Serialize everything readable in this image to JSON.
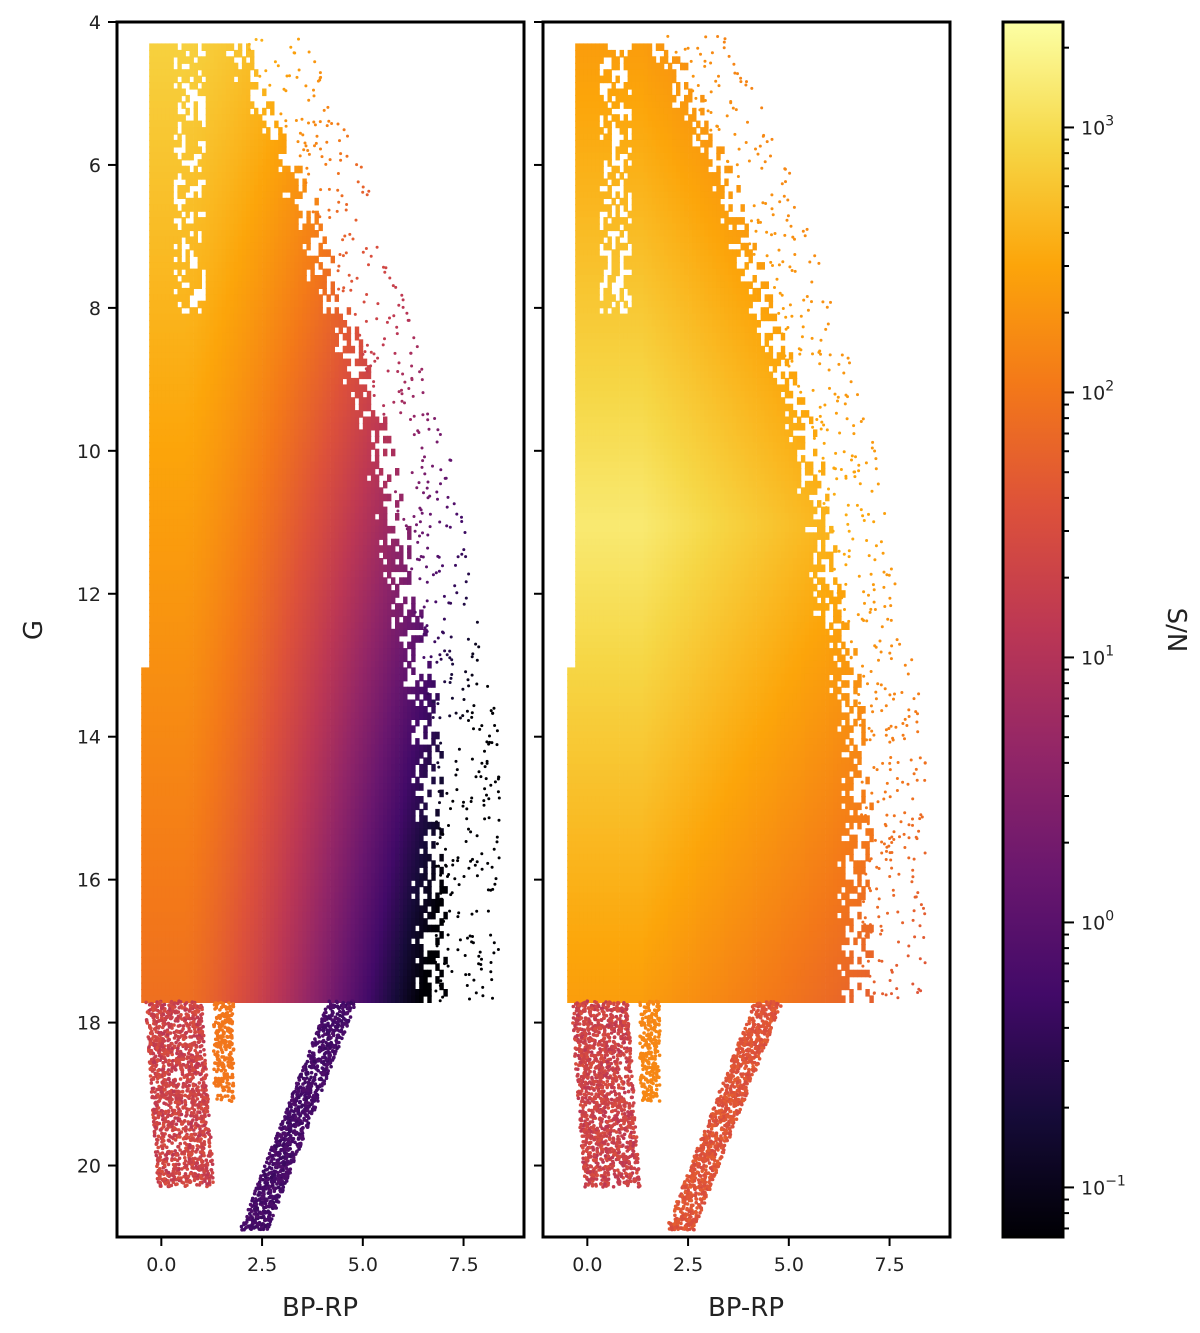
{
  "chart_data": [
    {
      "type": "scatter",
      "panel": "left",
      "xlabel": "BP-RP",
      "ylabel": "G",
      "xlim": [
        -1.1,
        9.0
      ],
      "ylim": [
        21.0,
        4.0
      ],
      "y_inverted": true,
      "xticks": [
        "0.0",
        "2.5",
        "5.0",
        "7.5"
      ],
      "xtick_values": [
        0.0,
        2.5,
        5.0,
        7.5
      ],
      "yticks": [
        "4",
        "6",
        "8",
        "10",
        "12",
        "14",
        "16",
        "18",
        "20"
      ],
      "ytick_values": [
        4,
        6,
        8,
        10,
        12,
        14,
        16,
        18,
        20
      ],
      "grid": false,
      "color_by": "S/N",
      "description_regions": {
        "main_sequence": {
          "x_range": [
            -0.5,
            6.3
          ],
          "g_range": [
            4.3,
            17.7
          ],
          "sn_bright_blue": 800,
          "sn_faint_red": 0.6
        },
        "white_dwarf_branch": {
          "x_range": [
            -0.4,
            1.2
          ],
          "g_range": [
            17.7,
            20.3
          ],
          "sn": 20
        },
        "red_tail": {
          "x_range": [
            2.2,
            4.7
          ],
          "g_range": [
            17.7,
            20.9
          ],
          "sn": 0.6
        }
      }
    },
    {
      "type": "scatter",
      "panel": "right",
      "xlabel": "BP-RP",
      "ylabel": "",
      "xlim": [
        -1.1,
        9.0
      ],
      "ylim": [
        21.0,
        4.0
      ],
      "y_inverted": true,
      "xticks": [
        "0.0",
        "2.5",
        "5.0",
        "7.5"
      ],
      "xtick_values": [
        0.0,
        2.5,
        5.0,
        7.5
      ],
      "grid": false,
      "color_by": "S/N",
      "description_regions": {
        "main_sequence": {
          "x_range": [
            -0.5,
            6.3
          ],
          "g_range": [
            4.3,
            17.7
          ],
          "sn_peak": 1500,
          "sn_faint_red": 60
        },
        "white_dwarf_branch": {
          "x_range": [
            -0.4,
            1.2
          ],
          "g_range": [
            17.7,
            20.3
          ],
          "sn": 20
        },
        "red_tail": {
          "x_range": [
            2.2,
            4.7
          ],
          "g_range": [
            17.7,
            20.9
          ],
          "sn": 40
        }
      }
    }
  ],
  "colorbar": {
    "label": "S/N",
    "scale": "log",
    "colormap": "inferno",
    "range": [
      0.065,
      2500
    ],
    "ticks": [
      {
        "value": 0.1,
        "base": "10",
        "exp": "−1"
      },
      {
        "value": 1,
        "base": "10",
        "exp": "0"
      },
      {
        "value": 10,
        "base": "10",
        "exp": "1"
      },
      {
        "value": 100,
        "base": "10",
        "exp": "2"
      },
      {
        "value": 1000,
        "base": "10",
        "exp": "3"
      }
    ]
  }
}
